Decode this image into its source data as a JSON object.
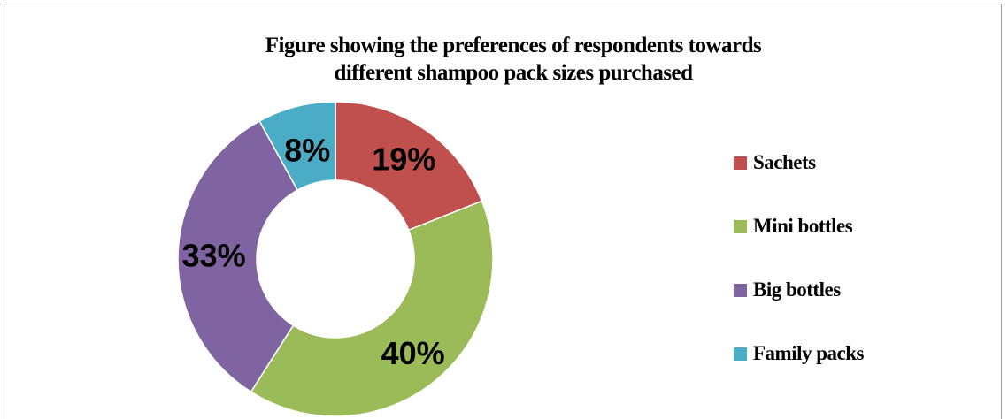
{
  "chart_data": {
    "type": "pie",
    "variant": "donut",
    "title_lines": [
      "Figure showing the preferences of respondents towards",
      "different shampoo  pack sizes purchased"
    ],
    "categories": [
      "Sachets",
      "Mini bottles",
      "Big bottles",
      "Family packs"
    ],
    "values": [
      19,
      40,
      33,
      8
    ],
    "data_labels": [
      "19%",
      "40%",
      "33%",
      "8%"
    ],
    "colors": [
      "#C0504D",
      "#9BBB59",
      "#8064A2",
      "#4BACC6"
    ],
    "legend_position": "right"
  }
}
